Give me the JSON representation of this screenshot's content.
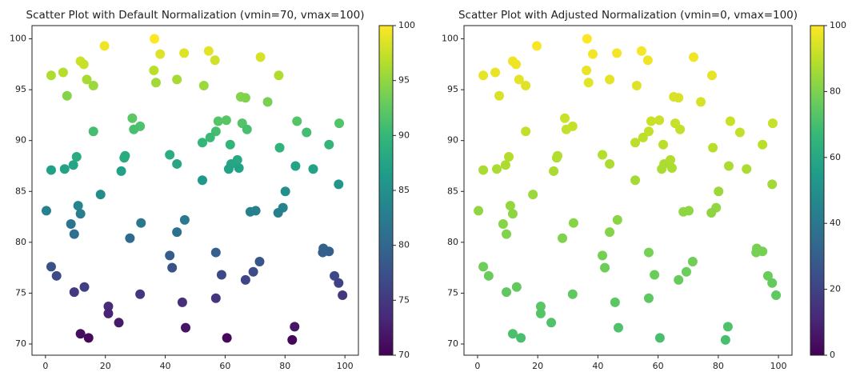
{
  "chart_data": [
    {
      "type": "scatter",
      "title": "Scatter Plot with Default Normalization (vmin=70, vmax=100)",
      "x": [
        36.4,
        19.7,
        54.5,
        46.3,
        38.3,
        71.8,
        56.6,
        11.7,
        12.8,
        5.9,
        1.9,
        77.9,
        36.2,
        13.8,
        43.9,
        36.9,
        16.0,
        52.9,
        7.2,
        65.2,
        66.8,
        74.2,
        29.0,
        31.6,
        29.5,
        57.7,
        60.4,
        65.7,
        67.3,
        56.9,
        84.0,
        87.2,
        98.1,
        16.0,
        55.0,
        52.4,
        61.7,
        78.2,
        94.7,
        41.5,
        10.4,
        26.6,
        26.3,
        64.1,
        43.9,
        62.0,
        9.3,
        6.4,
        1.9,
        25.3,
        61.2,
        64.6,
        83.5,
        89.4,
        52.4,
        97.9,
        80.1,
        18.4,
        10.9,
        0.3,
        11.7,
        79.3,
        70.2,
        68.4,
        77.7,
        46.5,
        31.9,
        8.5,
        43.9,
        9.6,
        28.2,
        92.8,
        92.6,
        94.7,
        56.9,
        41.5,
        71.5,
        1.9,
        42.3,
        69.4,
        3.7,
        58.8,
        96.5,
        66.8,
        97.9,
        13.0,
        9.6,
        31.6,
        99.2,
        56.9,
        45.7,
        21.0,
        21.0,
        24.5,
        46.8,
        83.2,
        11.7,
        14.4,
        60.6,
        82.4
      ],
      "y": [
        100.0,
        99.3,
        98.8,
        98.6,
        98.5,
        98.2,
        97.9,
        97.8,
        97.5,
        96.7,
        96.4,
        96.4,
        96.9,
        96.0,
        96.0,
        95.7,
        95.4,
        95.4,
        94.4,
        94.3,
        94.2,
        93.8,
        92.2,
        91.4,
        91.1,
        91.9,
        92.0,
        91.7,
        91.1,
        90.9,
        91.9,
        90.8,
        91.7,
        90.9,
        90.3,
        89.8,
        89.6,
        89.3,
        89.6,
        88.6,
        88.4,
        88.5,
        88.3,
        88.1,
        87.7,
        87.7,
        87.6,
        87.2,
        87.1,
        87.0,
        87.2,
        87.3,
        87.5,
        87.2,
        86.1,
        85.7,
        85.0,
        84.7,
        83.6,
        83.1,
        82.8,
        83.4,
        83.1,
        83.0,
        82.9,
        82.2,
        81.9,
        81.8,
        81.0,
        80.8,
        80.4,
        79.4,
        79.0,
        79.1,
        79.0,
        78.7,
        78.1,
        77.6,
        77.5,
        77.1,
        76.7,
        76.8,
        76.7,
        76.3,
        76.0,
        75.6,
        75.1,
        74.9,
        74.8,
        74.5,
        74.1,
        73.7,
        73.0,
        72.1,
        71.6,
        71.7,
        71.0,
        70.6,
        70.6,
        70.4
      ],
      "xlim": [
        -4.5,
        104.5
      ],
      "ylim": [
        68.9,
        101.3
      ],
      "xticks": [
        0,
        20,
        40,
        60,
        80,
        100
      ],
      "yticks": [
        70,
        75,
        80,
        85,
        90,
        95,
        100
      ],
      "colormap": "viridis",
      "color_source": "y",
      "clim": [
        70,
        100
      ],
      "cticks": [
        70,
        75,
        80,
        85,
        90,
        95,
        100
      ]
    },
    {
      "type": "scatter",
      "title": "Scatter Plot with Adjusted Normalization (vmin=0, vmax=100)",
      "x": [
        36.4,
        19.7,
        54.5,
        46.3,
        38.3,
        71.8,
        56.6,
        11.7,
        12.8,
        5.9,
        1.9,
        77.9,
        36.2,
        13.8,
        43.9,
        36.9,
        16.0,
        52.9,
        7.2,
        65.2,
        66.8,
        74.2,
        29.0,
        31.6,
        29.5,
        57.7,
        60.4,
        65.7,
        67.3,
        56.9,
        84.0,
        87.2,
        98.1,
        16.0,
        55.0,
        52.4,
        61.7,
        78.2,
        94.7,
        41.5,
        10.4,
        26.6,
        26.3,
        64.1,
        43.9,
        62.0,
        9.3,
        6.4,
        1.9,
        25.3,
        61.2,
        64.6,
        83.5,
        89.4,
        52.4,
        97.9,
        80.1,
        18.4,
        10.9,
        0.3,
        11.7,
        79.3,
        70.2,
        68.4,
        77.7,
        46.5,
        31.9,
        8.5,
        43.9,
        9.6,
        28.2,
        92.8,
        92.6,
        94.7,
        56.9,
        41.5,
        71.5,
        1.9,
        42.3,
        69.4,
        3.7,
        58.8,
        96.5,
        66.8,
        97.9,
        13.0,
        9.6,
        31.6,
        99.2,
        56.9,
        45.7,
        21.0,
        21.0,
        24.5,
        46.8,
        83.2,
        11.7,
        14.4,
        60.6,
        82.4
      ],
      "y": [
        100.0,
        99.3,
        98.8,
        98.6,
        98.5,
        98.2,
        97.9,
        97.8,
        97.5,
        96.7,
        96.4,
        96.4,
        96.9,
        96.0,
        96.0,
        95.7,
        95.4,
        95.4,
        94.4,
        94.3,
        94.2,
        93.8,
        92.2,
        91.4,
        91.1,
        91.9,
        92.0,
        91.7,
        91.1,
        90.9,
        91.9,
        90.8,
        91.7,
        90.9,
        90.3,
        89.8,
        89.6,
        89.3,
        89.6,
        88.6,
        88.4,
        88.5,
        88.3,
        88.1,
        87.7,
        87.7,
        87.6,
        87.2,
        87.1,
        87.0,
        87.2,
        87.3,
        87.5,
        87.2,
        86.1,
        85.7,
        85.0,
        84.7,
        83.6,
        83.1,
        82.8,
        83.4,
        83.1,
        83.0,
        82.9,
        82.2,
        81.9,
        81.8,
        81.0,
        80.8,
        80.4,
        79.4,
        79.0,
        79.1,
        79.0,
        78.7,
        78.1,
        77.6,
        77.5,
        77.1,
        76.7,
        76.8,
        76.7,
        76.3,
        76.0,
        75.6,
        75.1,
        74.9,
        74.8,
        74.5,
        74.1,
        73.7,
        73.0,
        72.1,
        71.6,
        71.7,
        71.0,
        70.6,
        70.6,
        70.4
      ],
      "xlim": [
        -4.5,
        104.5
      ],
      "ylim": [
        68.9,
        101.3
      ],
      "xticks": [
        0,
        20,
        40,
        60,
        80,
        100
      ],
      "yticks": [
        70,
        75,
        80,
        85,
        90,
        95,
        100
      ],
      "colormap": "viridis",
      "color_source": "y",
      "clim": [
        0,
        100
      ],
      "cticks": [
        0,
        20,
        40,
        60,
        80,
        100
      ]
    }
  ]
}
